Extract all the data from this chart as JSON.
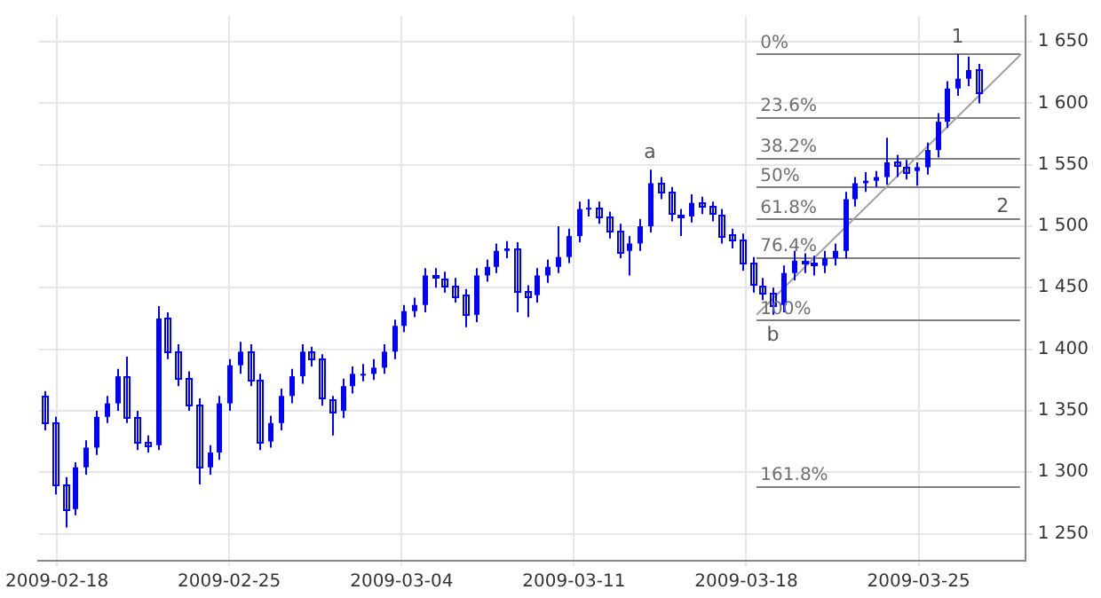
{
  "chart_data": {
    "type": "candlestick",
    "color": "#0000ff",
    "x": [
      "2009-02-17T12:00",
      "2009-02-17T22:00",
      "2009-02-18T08:00",
      "2009-02-18T18:00",
      "2009-02-19T04:00",
      "2009-02-19T14:00",
      "2009-02-20T00:00",
      "2009-02-20T10:00",
      "2009-02-20T20:00",
      "2009-02-21T06:00",
      "2009-02-21T16:00",
      "2009-02-22T02:00",
      "2009-02-22T12:00",
      "2009-02-22T22:00",
      "2009-02-23T08:00",
      "2009-02-23T18:00",
      "2009-02-24T04:00",
      "2009-02-24T14:00",
      "2009-02-25T00:00",
      "2009-02-25T10:00",
      "2009-02-25T20:00",
      "2009-02-26T06:00",
      "2009-02-26T16:00",
      "2009-02-27T02:00",
      "2009-02-27T12:00",
      "2009-02-27T22:00",
      "2009-02-28T08:00",
      "2009-02-28T18:00",
      "2009-03-01T04:00",
      "2009-03-01T14:00",
      "2009-03-02T00:00",
      "2009-03-02T10:00",
      "2009-03-02T20:00",
      "2009-03-03T06:00",
      "2009-03-03T16:00",
      "2009-03-04T02:00",
      "2009-03-04T12:00",
      "2009-03-04T22:00",
      "2009-03-05T08:00",
      "2009-03-05T18:00",
      "2009-03-06T04:00",
      "2009-03-06T14:00",
      "2009-03-07T00:00",
      "2009-03-07T10:00",
      "2009-03-07T20:00",
      "2009-03-08T06:00",
      "2009-03-08T16:00",
      "2009-03-09T02:00",
      "2009-03-09T12:00",
      "2009-03-09T22:00",
      "2009-03-10T08:00",
      "2009-03-10T18:00",
      "2009-03-11T04:00",
      "2009-03-11T14:00",
      "2009-03-12T00:00",
      "2009-03-12T10:00",
      "2009-03-12T20:00",
      "2009-03-13T06:00",
      "2009-03-13T16:00",
      "2009-03-14T02:00",
      "2009-03-14T12:00",
      "2009-03-14T22:00",
      "2009-03-15T08:00",
      "2009-03-15T18:00",
      "2009-03-16T04:00",
      "2009-03-16T14:00",
      "2009-03-17T00:00",
      "2009-03-17T10:00",
      "2009-03-17T20:00",
      "2009-03-18T06:00",
      "2009-03-18T16:00",
      "2009-03-19T02:00",
      "2009-03-19T12:00",
      "2009-03-19T22:00",
      "2009-03-20T08:00",
      "2009-03-20T18:00",
      "2009-03-21T04:00",
      "2009-03-21T14:00",
      "2009-03-22T00:00",
      "2009-03-22T10:00",
      "2009-03-22T20:00",
      "2009-03-23T06:00",
      "2009-03-23T16:00",
      "2009-03-24T02:00",
      "2009-03-24T12:00",
      "2009-03-24T22:00",
      "2009-03-25T08:00",
      "2009-03-25T18:00",
      "2009-03-26T04:00",
      "2009-03-26T14:00",
      "2009-03-27T00:00",
      "2009-03-27T10:00"
    ],
    "ohlc": [
      [
        1362,
        1366,
        1334,
        1340
      ],
      [
        1340,
        1345,
        1282,
        1290
      ],
      [
        1290,
        1296,
        1255,
        1270
      ],
      [
        1270,
        1308,
        1265,
        1304
      ],
      [
        1304,
        1326,
        1298,
        1320
      ],
      [
        1320,
        1350,
        1314,
        1345
      ],
      [
        1345,
        1362,
        1340,
        1356
      ],
      [
        1356,
        1384,
        1350,
        1378
      ],
      [
        1378,
        1394,
        1340,
        1345
      ],
      [
        1345,
        1350,
        1318,
        1325
      ],
      [
        1325,
        1330,
        1316,
        1322
      ],
      [
        1322,
        1435,
        1318,
        1425
      ],
      [
        1425,
        1430,
        1392,
        1398
      ],
      [
        1398,
        1404,
        1370,
        1376
      ],
      [
        1376,
        1382,
        1350,
        1355
      ],
      [
        1355,
        1360,
        1290,
        1304
      ],
      [
        1304,
        1322,
        1298,
        1316
      ],
      [
        1316,
        1362,
        1310,
        1356
      ],
      [
        1356,
        1392,
        1350,
        1387
      ],
      [
        1387,
        1406,
        1380,
        1398
      ],
      [
        1398,
        1404,
        1370,
        1375
      ],
      [
        1375,
        1380,
        1318,
        1325
      ],
      [
        1325,
        1346,
        1320,
        1340
      ],
      [
        1340,
        1368,
        1334,
        1362
      ],
      [
        1362,
        1384,
        1356,
        1378
      ],
      [
        1378,
        1404,
        1372,
        1398
      ],
      [
        1398,
        1402,
        1386,
        1392
      ],
      [
        1392,
        1396,
        1354,
        1360
      ],
      [
        1360,
        1362,
        1330,
        1350
      ],
      [
        1350,
        1376,
        1344,
        1370
      ],
      [
        1370,
        1386,
        1364,
        1380
      ],
      [
        1380,
        1388,
        1374,
        1380
      ],
      [
        1380,
        1392,
        1375,
        1385
      ],
      [
        1385,
        1404,
        1380,
        1398
      ],
      [
        1398,
        1424,
        1392,
        1419
      ],
      [
        1419,
        1436,
        1414,
        1431
      ],
      [
        1431,
        1442,
        1426,
        1436
      ],
      [
        1436,
        1466,
        1430,
        1460
      ],
      [
        1460,
        1466,
        1450,
        1458
      ],
      [
        1458,
        1463,
        1446,
        1452
      ],
      [
        1452,
        1458,
        1438,
        1444
      ],
      [
        1444,
        1449,
        1418,
        1428
      ],
      [
        1428,
        1466,
        1422,
        1460
      ],
      [
        1460,
        1473,
        1455,
        1467
      ],
      [
        1467,
        1486,
        1462,
        1480
      ],
      [
        1480,
        1488,
        1474,
        1482
      ],
      [
        1482,
        1487,
        1430,
        1448
      ],
      [
        1448,
        1452,
        1426,
        1444
      ],
      [
        1444,
        1466,
        1438,
        1460
      ],
      [
        1460,
        1473,
        1454,
        1467
      ],
      [
        1467,
        1500,
        1462,
        1475
      ],
      [
        1475,
        1498,
        1470,
        1492
      ],
      [
        1492,
        1520,
        1487,
        1514
      ],
      [
        1514,
        1522,
        1508,
        1515
      ],
      [
        1515,
        1520,
        1502,
        1508
      ],
      [
        1508,
        1512,
        1490,
        1497
      ],
      [
        1497,
        1502,
        1474,
        1480
      ],
      [
        1480,
        1492,
        1460,
        1486
      ],
      [
        1486,
        1506,
        1480,
        1500
      ],
      [
        1500,
        1546,
        1495,
        1535
      ],
      [
        1535,
        1540,
        1522,
        1528
      ],
      [
        1528,
        1532,
        1504,
        1510
      ],
      [
        1510,
        1514,
        1492,
        1508
      ],
      [
        1508,
        1526,
        1503,
        1519
      ],
      [
        1519,
        1524,
        1510,
        1516
      ],
      [
        1516,
        1520,
        1504,
        1510
      ],
      [
        1510,
        1514,
        1486,
        1493
      ],
      [
        1493,
        1498,
        1482,
        1489
      ],
      [
        1489,
        1494,
        1464,
        1470
      ],
      [
        1470,
        1475,
        1446,
        1452
      ],
      [
        1452,
        1458,
        1440,
        1446
      ],
      [
        1446,
        1450,
        1428,
        1436
      ],
      [
        1436,
        1468,
        1430,
        1462
      ],
      [
        1462,
        1480,
        1456,
        1472
      ],
      [
        1472,
        1478,
        1462,
        1470
      ],
      [
        1470,
        1476,
        1460,
        1468
      ],
      [
        1468,
        1480,
        1462,
        1474
      ],
      [
        1474,
        1486,
        1468,
        1480
      ],
      [
        1480,
        1528,
        1474,
        1522
      ],
      [
        1522,
        1540,
        1516,
        1535
      ],
      [
        1535,
        1544,
        1528,
        1537
      ],
      [
        1537,
        1545,
        1532,
        1540
      ],
      [
        1540,
        1572,
        1534,
        1552
      ],
      [
        1552,
        1558,
        1540,
        1549
      ],
      [
        1549,
        1554,
        1538,
        1545
      ],
      [
        1545,
        1552,
        1533,
        1548
      ],
      [
        1548,
        1568,
        1542,
        1562
      ],
      [
        1562,
        1592,
        1556,
        1585
      ],
      [
        1585,
        1618,
        1580,
        1612
      ],
      [
        1612,
        1640,
        1606,
        1620
      ],
      [
        1620,
        1638,
        1614,
        1627
      ],
      [
        1627,
        1632,
        1600,
        1608
      ]
    ],
    "series": [
      {
        "type": "line",
        "color": "#a0a0a0",
        "x": [
          "2009-03-18T10:00",
          "2009-03-29T04:00"
        ],
        "values": [
          1428,
          1640
        ]
      }
    ],
    "xlim": [
      "2009-02-17T06:00",
      "2009-03-29T08:00"
    ],
    "xticks": [
      "2009-02-18",
      "2009-02-25",
      "2009-03-04",
      "2009-03-11",
      "2009-03-18",
      "2009-03-25"
    ],
    "ylim": [
      1228,
      1671
    ],
    "yticks": [
      {
        "value": 1250,
        "label": "1 250"
      },
      {
        "value": 1300,
        "label": "1 300"
      },
      {
        "value": 1350,
        "label": "1 350"
      },
      {
        "value": 1400,
        "label": "1 400"
      },
      {
        "value": 1450,
        "label": "1 450"
      },
      {
        "value": 1500,
        "label": "1 500"
      },
      {
        "value": 1550,
        "label": "1 550"
      },
      {
        "value": 1600,
        "label": "1 600"
      },
      {
        "value": 1650,
        "label": "1 650"
      }
    ],
    "ref_lines": [
      {
        "axis": "y",
        "value": 1640,
        "color": "#808080"
      },
      {
        "axis": "y",
        "value": 1589,
        "color": "#808080"
      },
      {
        "axis": "y",
        "value": 1556,
        "color": "#808080"
      },
      {
        "axis": "y",
        "value": 1532,
        "color": "#808080"
      },
      {
        "axis": "y",
        "value": 1506,
        "color": "#808080"
      },
      {
        "axis": "y",
        "value": 1475,
        "color": "#808080"
      },
      {
        "axis": "y",
        "value": 1424,
        "color": "#808080"
      },
      {
        "axis": "y",
        "value": 1289,
        "color": "#808080"
      }
    ],
    "annotations": [
      {
        "text": "a",
        "x": "2009-03-14T02:00",
        "y": 1546
      },
      {
        "text": "b",
        "x": "2009-03-19T02:00",
        "y": 1428
      },
      {
        "text": "1",
        "x": "2009-03-26T14:00",
        "y": 1640
      },
      {
        "text": "2",
        "x": "2009-03-28T10:00",
        "y": 1532
      },
      {
        "text": "0%",
        "x": "2009-03-18T12:00",
        "y": 1640
      },
      {
        "text": "23.6%",
        "x": "2009-03-18T12:00",
        "y": 1589
      },
      {
        "text": "38.2%",
        "x": "2009-03-18T12:00",
        "y": 1556
      },
      {
        "text": "50%",
        "x": "2009-03-18T12:00",
        "y": 1532
      },
      {
        "text": "61.8%",
        "x": "2009-03-18T12:00",
        "y": 1506
      },
      {
        "text": "76.4%",
        "x": "2009-03-18T12:00",
        "y": 1475
      },
      {
        "text": "100%",
        "x": "2009-03-18T12:00",
        "y": 1424
      },
      {
        "text": "161.8%",
        "x": "2009-03-18T12:00",
        "y": 1289
      }
    ],
    "grid": true,
    "legend": false
  }
}
